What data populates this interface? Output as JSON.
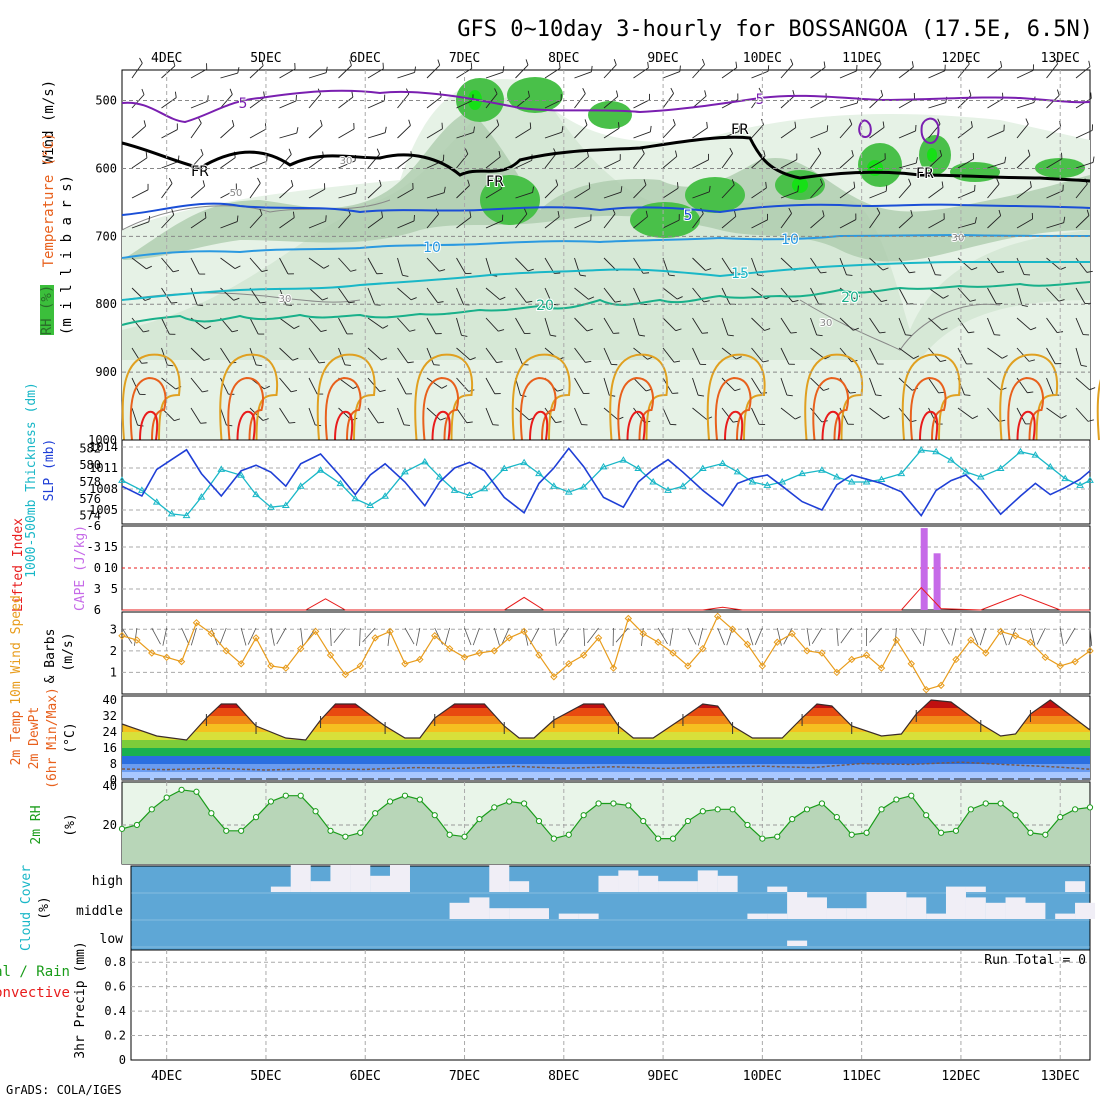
{
  "title": "GFS 0~10day 3-hourly for BOSSANGOA (17.5E, 6.5N)",
  "footer": "GrADS: COLA/IGES",
  "colors": {
    "wind_ylabel": "#000000",
    "temp_ylabel": "#e8601c",
    "rh_ylabel": "#1a9c1a",
    "thickness": "#19b7c7",
    "slp": "#1f3fd6",
    "cape": "#c66ae8",
    "lifted": "#e81c1c",
    "wind10": "#e89c1c",
    "precip_total": "#1a9c1a",
    "precip_conv": "#e81c1c",
    "cloud_bg": "#5ea7d6",
    "cloud_fill": "#f0eef6"
  },
  "x_axis": {
    "ticks": [
      "4DEC",
      "5DEC",
      "6DEC",
      "7DEC",
      "8DEC",
      "9DEC",
      "10DEC",
      "11DEC",
      "12DEC",
      "13DEC"
    ],
    "start_day": 3.55,
    "end_day": 13.3
  },
  "panels": {
    "upper": {
      "ylabels": [
        "Wind (m/s)",
        "Temperature (°C)",
        "(m i l l i b a r s)",
        "RH (%)"
      ],
      "yticks": [
        "500",
        "600",
        "700",
        "800",
        "900",
        "1000"
      ],
      "contour_labels": {
        "temp": [
          "5",
          "5",
          "5",
          "10",
          "10",
          "15",
          "20",
          "20"
        ],
        "fr": [
          "FR",
          "FR",
          "FR",
          "FR"
        ],
        "rh": [
          "30",
          "30",
          "50",
          "30",
          "30"
        ]
      }
    },
    "thickness_slp": {
      "ylabel_left": "1000-500mb Thickness (dm)",
      "ylabel_right": "SLP (mb)",
      "yticks_thickness": [
        "582",
        "580",
        "578",
        "576",
        "574"
      ],
      "yticks_slp": [
        "1014",
        "1011",
        "1008",
        "1005"
      ]
    },
    "stability": {
      "ylabel_left": "Lifted Index",
      "ylabel_right": "CAPE (J/kg)",
      "yticks_li": [
        "-6",
        "-3",
        "0",
        "3",
        "6"
      ],
      "yticks_cape": [
        "15",
        "10",
        "5"
      ]
    },
    "wind10": {
      "ylabel": [
        "10m Wind Speed",
        "& Barbs",
        "(m/s)"
      ],
      "yticks": [
        "3",
        "2",
        "1"
      ]
    },
    "temp2m": {
      "ylabel": [
        "2m Temp",
        "2m DewPt",
        "(6hr Min/Max)",
        "(°C)"
      ],
      "yticks": [
        "40",
        "32",
        "24",
        "16",
        "8",
        "0"
      ]
    },
    "rh2m": {
      "ylabel": [
        "2m RH",
        "(%)"
      ],
      "yticks": [
        "40",
        "20"
      ]
    },
    "cloud": {
      "ylabel": [
        "Cloud Cover",
        "(%)"
      ],
      "levels": [
        "high",
        "middle",
        "low"
      ]
    },
    "precip": {
      "ylabel": [
        "Total / Rain",
        "Convective",
        "3hr Precip (mm)"
      ],
      "yticks": [
        "0.8",
        "0.6",
        "0.4",
        "0.2",
        "0"
      ],
      "run_total": "Run Total = 0"
    }
  },
  "chart_data": [
    {
      "type": "line",
      "title": "1000-500mb Thickness (dm) / SLP (mb)",
      "x_unit": "day of December (UTC)",
      "series": [
        {
          "name": "Thickness",
          "axis": "left",
          "ylim": [
            573,
            583
          ],
          "x": [
            3.55,
            3.75,
            3.9,
            4.05,
            4.2,
            4.35,
            4.55,
            4.75,
            4.9,
            5.05,
            5.2,
            5.35,
            5.55,
            5.75,
            5.9,
            6.05,
            6.2,
            6.4,
            6.6,
            6.75,
            6.9,
            7.05,
            7.2,
            7.4,
            7.6,
            7.75,
            7.9,
            8.05,
            8.2,
            8.4,
            8.6,
            8.75,
            8.9,
            9.05,
            9.2,
            9.4,
            9.6,
            9.75,
            9.9,
            10.05,
            10.2,
            10.4,
            10.6,
            10.75,
            10.9,
            11.05,
            11.2,
            11.4,
            11.6,
            11.75,
            11.9,
            12.05,
            12.2,
            12.4,
            12.6,
            12.75,
            12.9,
            13.05,
            13.2,
            13.3
          ],
          "y": [
            578.2,
            577.0,
            575.6,
            574.2,
            574.0,
            576.2,
            579.5,
            578.8,
            576.5,
            575.0,
            575.2,
            577.5,
            579.4,
            577.8,
            576.0,
            575.2,
            576.3,
            579.2,
            580.4,
            578.6,
            577.0,
            576.4,
            577.2,
            579.6,
            580.3,
            579.0,
            577.5,
            576.8,
            577.4,
            579.8,
            580.6,
            579.6,
            578.0,
            577.0,
            577.5,
            579.6,
            580.2,
            579.2,
            578.0,
            577.6,
            578.0,
            579.0,
            579.4,
            578.6,
            578.0,
            578.0,
            578.3,
            579.0,
            581.8,
            581.6,
            580.6,
            579.2,
            578.6,
            579.6,
            581.6,
            581.2,
            579.8,
            578.4,
            577.6,
            578.2
          ]
        },
        {
          "name": "SLP",
          "axis": "right",
          "ylim": [
            1003,
            1015
          ],
          "x": [
            3.55,
            3.75,
            3.9,
            4.05,
            4.2,
            4.35,
            4.55,
            4.75,
            4.9,
            5.05,
            5.2,
            5.35,
            5.55,
            5.75,
            5.9,
            6.05,
            6.2,
            6.4,
            6.6,
            6.75,
            6.9,
            7.05,
            7.2,
            7.4,
            7.6,
            7.75,
            7.9,
            8.05,
            8.2,
            8.4,
            8.6,
            8.75,
            8.9,
            9.05,
            9.2,
            9.4,
            9.6,
            9.75,
            9.9,
            10.05,
            10.2,
            10.4,
            10.6,
            10.75,
            10.9,
            11.05,
            11.2,
            11.4,
            11.6,
            11.75,
            11.9,
            12.05,
            12.2,
            12.4,
            12.6,
            12.75,
            12.9,
            13.05,
            13.2,
            13.3
          ],
          "y": [
            1008.4,
            1007.0,
            1010.8,
            1012.2,
            1013.6,
            1010.2,
            1007.0,
            1010.6,
            1011.4,
            1010.4,
            1008.4,
            1011.6,
            1013.0,
            1009.8,
            1007.2,
            1010.0,
            1011.6,
            1009.0,
            1005.6,
            1009.0,
            1011.0,
            1011.8,
            1010.6,
            1006.8,
            1004.6,
            1008.8,
            1011.0,
            1013.8,
            1011.2,
            1006.8,
            1005.4,
            1009.0,
            1010.8,
            1012.2,
            1010.4,
            1007.8,
            1005.6,
            1008.8,
            1009.6,
            1010.0,
            1008.4,
            1006.2,
            1005.0,
            1008.6,
            1010.0,
            1009.4,
            1008.8,
            1007.6,
            1004.2,
            1007.8,
            1009.2,
            1010.0,
            1008.0,
            1004.4,
            1007.0,
            1008.8,
            1007.2,
            1008.2,
            1009.4,
            1010.6
          ]
        }
      ]
    },
    {
      "type": "bar",
      "title": "Lifted Index / CAPE (J/kg)",
      "x_unit": "day of December (UTC)",
      "series": [
        {
          "name": "CAPE",
          "axis": "right",
          "ylim": [
            0,
            20
          ],
          "x": [
            11.63,
            11.76
          ],
          "values": [
            19.5,
            13.5
          ]
        },
        {
          "name": "Lifted Index",
          "axis": "left",
          "ylim": [
            6,
            -6
          ],
          "type": "line",
          "x": [
            3.55,
            4.0,
            4.5,
            5.0,
            5.4,
            5.6,
            5.8,
            6.2,
            6.6,
            7.0,
            7.4,
            7.6,
            7.8,
            8.2,
            8.6,
            9.0,
            9.4,
            9.6,
            9.8,
            10.2,
            10.6,
            11.0,
            11.4,
            11.6,
            11.8,
            12.2,
            12.6,
            13.0,
            13.3
          ],
          "y": [
            6,
            6,
            6,
            6,
            6,
            4.4,
            6,
            6,
            6,
            6,
            6,
            4.2,
            6,
            6,
            6,
            6,
            6,
            5.6,
            6,
            6,
            6,
            6,
            6,
            2.8,
            5.8,
            6,
            3.8,
            6,
            6
          ]
        }
      ]
    },
    {
      "type": "line",
      "title": "10m Wind Speed & Barbs (m/s)",
      "x_unit": "day of December (UTC)",
      "ylim": [
        0,
        3.8
      ],
      "series": [
        {
          "name": "10m Wind Speed",
          "x": [
            3.55,
            3.7,
            3.85,
            4.0,
            4.15,
            4.3,
            4.45,
            4.6,
            4.75,
            4.9,
            5.05,
            5.2,
            5.35,
            5.5,
            5.65,
            5.8,
            5.95,
            6.1,
            6.25,
            6.4,
            6.55,
            6.7,
            6.85,
            7.0,
            7.15,
            7.3,
            7.45,
            7.6,
            7.75,
            7.9,
            8.05,
            8.2,
            8.35,
            8.5,
            8.65,
            8.8,
            8.95,
            9.1,
            9.25,
            9.4,
            9.55,
            9.7,
            9.85,
            10.0,
            10.15,
            10.3,
            10.45,
            10.6,
            10.75,
            10.9,
            11.05,
            11.2,
            11.35,
            11.5,
            11.65,
            11.8,
            11.95,
            12.1,
            12.25,
            12.4,
            12.55,
            12.7,
            12.85,
            13.0,
            13.15,
            13.3
          ],
          "y": [
            2.7,
            2.5,
            1.9,
            1.7,
            1.5,
            3.3,
            2.8,
            2.0,
            1.4,
            2.6,
            1.3,
            1.2,
            2.1,
            2.9,
            1.8,
            0.9,
            1.3,
            2.6,
            2.9,
            1.4,
            1.6,
            2.7,
            2.1,
            1.7,
            1.9,
            2.0,
            2.6,
            2.9,
            1.8,
            0.8,
            1.4,
            1.8,
            2.6,
            1.2,
            3.5,
            2.8,
            2.4,
            1.9,
            1.3,
            2.1,
            3.6,
            3.0,
            2.3,
            1.3,
            2.4,
            2.8,
            2.0,
            1.9,
            1.0,
            1.6,
            1.8,
            1.2,
            2.5,
            1.4,
            0.2,
            0.4,
            1.6,
            2.5,
            1.9,
            2.9,
            2.7,
            2.4,
            1.7,
            1.3,
            1.5,
            2.0
          ]
        }
      ]
    },
    {
      "type": "area",
      "title": "2m Temp / 2m DewPt (6hr Min/Max) (°C)",
      "x_unit": "day of December (UTC)",
      "ylim": [
        0,
        42
      ],
      "series": [
        {
          "name": "2m Temp",
          "x": [
            3.55,
            3.9,
            4.2,
            4.4,
            4.55,
            4.7,
            4.9,
            5.2,
            5.4,
            5.55,
            5.7,
            5.9,
            6.2,
            6.4,
            6.55,
            6.7,
            6.9,
            7.2,
            7.4,
            7.55,
            7.7,
            7.9,
            8.2,
            8.4,
            8.55,
            8.7,
            8.9,
            9.2,
            9.4,
            9.55,
            9.7,
            9.9,
            10.2,
            10.4,
            10.55,
            10.7,
            10.9,
            11.2,
            11.4,
            11.55,
            11.7,
            11.9,
            12.2,
            12.4,
            12.55,
            12.7,
            12.9,
            13.3
          ],
          "y": [
            28,
            22,
            20,
            31,
            38,
            38,
            27,
            21,
            20,
            30,
            38,
            38,
            27,
            21,
            21,
            31,
            38,
            38,
            27,
            21,
            21,
            30,
            38,
            38,
            27,
            21,
            21,
            31,
            38,
            37,
            27,
            21,
            21,
            31,
            38,
            37,
            27,
            22,
            23,
            33,
            40,
            39,
            28,
            22,
            23,
            33,
            40,
            25
          ]
        },
        {
          "name": "2m DewPt",
          "x": [
            3.55,
            4.0,
            4.5,
            5.0,
            5.5,
            6.0,
            6.5,
            7.0,
            7.5,
            8.0,
            8.5,
            9.0,
            9.5,
            10.0,
            10.5,
            11.0,
            11.5,
            12.0,
            12.5,
            13.0,
            13.3
          ],
          "y": [
            5.5,
            5.2,
            5.8,
            5.0,
            5.6,
            5.3,
            6.2,
            5.8,
            6.8,
            5.9,
            6.6,
            5.8,
            6.4,
            6.9,
            6.2,
            8.2,
            7.8,
            8.9,
            7.6,
            6.4,
            5.4
          ]
        }
      ]
    },
    {
      "type": "area",
      "title": "2m RH (%)",
      "x_unit": "day of December (UTC)",
      "ylim": [
        0,
        42
      ],
      "series": [
        {
          "name": "2m RH",
          "x": [
            3.55,
            3.7,
            3.85,
            4.0,
            4.15,
            4.3,
            4.45,
            4.6,
            4.75,
            4.9,
            5.05,
            5.2,
            5.35,
            5.5,
            5.65,
            5.8,
            5.95,
            6.1,
            6.25,
            6.4,
            6.55,
            6.7,
            6.85,
            7.0,
            7.15,
            7.3,
            7.45,
            7.6,
            7.75,
            7.9,
            8.05,
            8.2,
            8.35,
            8.5,
            8.65,
            8.8,
            8.95,
            9.1,
            9.25,
            9.4,
            9.55,
            9.7,
            9.85,
            10.0,
            10.15,
            10.3,
            10.45,
            10.6,
            10.75,
            10.9,
            11.05,
            11.2,
            11.35,
            11.5,
            11.65,
            11.8,
            11.95,
            12.1,
            12.25,
            12.4,
            12.55,
            12.7,
            12.85,
            13.0,
            13.15,
            13.3
          ],
          "y": [
            18,
            20,
            28,
            34,
            38,
            37,
            26,
            17,
            17,
            24,
            32,
            35,
            35,
            27,
            17,
            14,
            16,
            26,
            32,
            35,
            33,
            25,
            15,
            14,
            23,
            29,
            32,
            31,
            22,
            13,
            15,
            25,
            31,
            31,
            30,
            22,
            13,
            13,
            22,
            27,
            28,
            28,
            20,
            13,
            14,
            23,
            28,
            31,
            24,
            15,
            16,
            28,
            33,
            35,
            25,
            16,
            17,
            28,
            31,
            31,
            25,
            16,
            15,
            24,
            28,
            29
          ]
        }
      ]
    },
    {
      "type": "heatmap",
      "title": "Cloud Cover (%)",
      "rows": [
        "high",
        "middle",
        "low"
      ],
      "x_unit": "day of December (UTC)",
      "series": [
        {
          "name": "high",
          "x": [
            5.15,
            5.35,
            5.55,
            5.75,
            5.95,
            6.15,
            6.35,
            7.35,
            7.55,
            8.45,
            8.65,
            8.85,
            9.05,
            9.25,
            9.45,
            9.65,
            10.15,
            11.95,
            12.15,
            13.15
          ],
          "values": [
            20,
            100,
            40,
            100,
            100,
            60,
            100,
            100,
            40,
            60,
            80,
            60,
            40,
            40,
            80,
            60,
            20,
            20,
            20,
            40
          ]
        },
        {
          "name": "middle",
          "x": [
            6.95,
            7.15,
            7.35,
            7.55,
            7.75,
            8.05,
            8.25,
            9.95,
            10.15,
            10.35,
            10.55,
            10.75,
            10.95,
            11.15,
            11.35,
            11.55,
            11.75,
            11.95,
            12.15,
            12.35,
            12.55,
            12.75,
            13.05,
            13.25
          ],
          "values": [
            60,
            80,
            40,
            40,
            40,
            20,
            20,
            20,
            20,
            100,
            80,
            40,
            40,
            100,
            100,
            80,
            20,
            100,
            80,
            60,
            80,
            60,
            20,
            60
          ]
        },
        {
          "name": "low",
          "x": [
            10.35
          ],
          "values": [
            20
          ]
        }
      ]
    },
    {
      "type": "bar",
      "title": "Total / Rain / Convective 3hr Precip (mm)",
      "x_unit": "day of December (UTC)",
      "ylim": [
        0,
        0.9
      ],
      "series": [
        {
          "name": "Total / Rain",
          "x": [],
          "values": []
        },
        {
          "name": "Convective",
          "x": [],
          "values": []
        }
      ],
      "run_total": 0
    }
  ]
}
